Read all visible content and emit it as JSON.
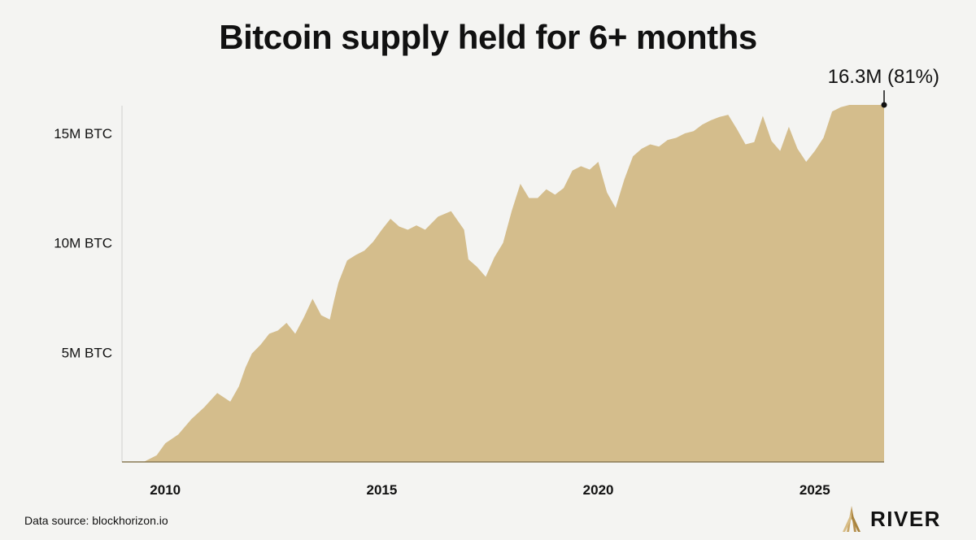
{
  "chart_data": {
    "type": "area",
    "title": "Bitcoin supply held for 6+ months",
    "xlabel": "",
    "ylabel": "",
    "y_ticks": [
      {
        "value": 5000000,
        "label": "5M BTC"
      },
      {
        "value": 10000000,
        "label": "10M BTC"
      },
      {
        "value": 15000000,
        "label": "15M BTC"
      }
    ],
    "x_ticks": [
      {
        "value": 2010,
        "label": "2010"
      },
      {
        "value": 2015,
        "label": "2015"
      },
      {
        "value": 2020,
        "label": "2020"
      },
      {
        "value": 2025,
        "label": "2025"
      }
    ],
    "xlim": [
      2009.0,
      2026.6
    ],
    "ylim": [
      0,
      16300000
    ],
    "grid": false,
    "color": "#d4bd8c",
    "series": [
      {
        "x": [
          2009.0,
          2009.5,
          2009.8,
          2010.0,
          2010.3,
          2010.6,
          2010.9,
          2011.2,
          2011.5,
          2011.7,
          2011.85,
          2012.0,
          2012.2,
          2012.4,
          2012.6,
          2012.8,
          2013.0,
          2013.2,
          2013.4,
          2013.6,
          2013.8,
          2013.9,
          2014.0,
          2014.2,
          2014.4,
          2014.6,
          2014.8,
          2015.0,
          2015.2,
          2015.4,
          2015.6,
          2015.8,
          2016.0,
          2016.3,
          2016.6,
          2016.9,
          2017.0,
          2017.2,
          2017.4,
          2017.6,
          2017.8,
          2018.0,
          2018.2,
          2018.4,
          2018.6,
          2018.8,
          2019.0,
          2019.2,
          2019.4,
          2019.6,
          2019.8,
          2020.0,
          2020.2,
          2020.4,
          2020.6,
          2020.8,
          2021.0,
          2021.2,
          2021.4,
          2021.6,
          2021.8,
          2022.0,
          2022.2,
          2022.4,
          2022.6,
          2022.8,
          2023.0,
          2023.2,
          2023.4,
          2023.6,
          2023.8,
          2024.0,
          2024.2,
          2024.4,
          2024.6,
          2024.8,
          2025.0,
          2025.2,
          2025.4,
          2025.6,
          2025.8,
          2026.0,
          2026.2,
          2026.3,
          2026.4,
          2026.6
        ],
        "y": [
          0,
          0,
          300000,
          850000,
          1250000,
          1950000,
          2500000,
          3150000,
          2750000,
          3450000,
          4300000,
          4950000,
          5350000,
          5850000,
          6000000,
          6350000,
          5850000,
          6600000,
          7450000,
          6700000,
          6500000,
          7400000,
          8200000,
          9200000,
          9450000,
          9650000,
          10050000,
          10600000,
          11100000,
          10750000,
          10600000,
          10800000,
          10600000,
          11200000,
          11450000,
          10600000,
          9250000,
          8900000,
          8450000,
          9350000,
          10000000,
          11450000,
          12700000,
          12050000,
          12050000,
          12450000,
          12200000,
          12500000,
          13300000,
          13500000,
          13350000,
          13700000,
          12300000,
          11600000,
          12900000,
          13950000,
          14300000,
          14500000,
          14400000,
          14700000,
          14800000,
          15000000,
          15100000,
          15400000,
          15600000,
          15750000,
          15850000,
          15200000,
          14500000,
          14600000,
          15800000,
          14650000,
          14200000,
          15300000,
          14300000,
          13700000,
          14200000,
          14800000,
          16000000,
          16200000,
          16300000,
          16300000,
          16300000,
          16300000,
          16300000,
          16300000
        ]
      }
    ],
    "annotations": [
      {
        "x": 2026.6,
        "y": 16300000,
        "text": "16.3M (81%)"
      }
    ]
  },
  "footer": {
    "source": "Data source: blockhorizon.io",
    "brand": "RIVER"
  }
}
